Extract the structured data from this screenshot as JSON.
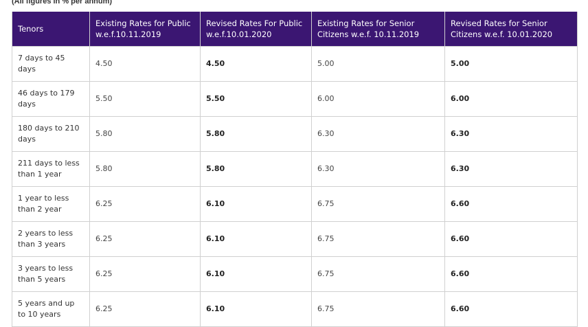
{
  "caption": "(All figures in % per annum)",
  "headers": [
    "Tenors",
    "Existing Rates for Public w.e.f.10.11.2019",
    "Revised Rates For Public w.e.f.10.01.2020",
    "Existing Rates for Senior Citizens w.e.f. 10.11.2019",
    "Revised Rates for Senior Citizens w.e.f. 10.01.2020"
  ],
  "rows": [
    {
      "tenor": "7 days to 45 days",
      "existing_public": "4.50",
      "revised_public": "4.50",
      "existing_senior": "5.00",
      "revised_senior": "5.00"
    },
    {
      "tenor": "46 days to 179 days",
      "existing_public": "5.50",
      "revised_public": "5.50",
      "existing_senior": "6.00",
      "revised_senior": "6.00"
    },
    {
      "tenor": "180 days to 210 days",
      "existing_public": "5.80",
      "revised_public": "5.80",
      "existing_senior": "6.30",
      "revised_senior": "6.30"
    },
    {
      "tenor": "211 days to less than 1 year",
      "existing_public": "5.80",
      "revised_public": "5.80",
      "existing_senior": "6.30",
      "revised_senior": "6.30"
    },
    {
      "tenor": "1 year to less than 2 year",
      "existing_public": "6.25",
      "revised_public": "6.10",
      "existing_senior": "6.75",
      "revised_senior": "6.60"
    },
    {
      "tenor": "2 years to less than 3 years",
      "existing_public": "6.25",
      "revised_public": "6.10",
      "existing_senior": "6.75",
      "revised_senior": "6.60"
    },
    {
      "tenor": "3 years to less than 5 years",
      "existing_public": "6.25",
      "revised_public": "6.10",
      "existing_senior": "6.75",
      "revised_senior": "6.60"
    },
    {
      "tenor": "5 years and up to 10 years",
      "existing_public": "6.25",
      "revised_public": "6.10",
      "existing_senior": "6.75",
      "revised_senior": "6.60"
    }
  ],
  "colors": {
    "header_background": "#3b1672",
    "header_text": "#ffffff",
    "grid_border": "#d0d0d0"
  }
}
